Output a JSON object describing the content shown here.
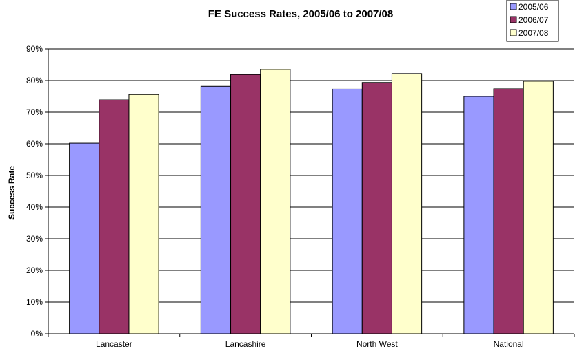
{
  "chart_data": {
    "type": "bar",
    "title": "FE Success Rates, 2005/06 to 2007/08",
    "xlabel": "",
    "ylabel": "Success Rate",
    "categories": [
      "Lancaster",
      "Lancashire",
      "North West",
      "National"
    ],
    "series": [
      {
        "name": "2005/06",
        "values": [
          0.602,
          0.782,
          0.773,
          0.75
        ],
        "color": "#9999ff"
      },
      {
        "name": "2006/07",
        "values": [
          0.739,
          0.819,
          0.794,
          0.774
        ],
        "color": "#993366"
      },
      {
        "name": "2007/08",
        "values": [
          0.756,
          0.835,
          0.822,
          0.798
        ],
        "color": "#ffffcc"
      }
    ],
    "ylim": [
      0,
      0.9
    ],
    "yticks": [
      "0%",
      "10%",
      "20%",
      "30%",
      "40%",
      "50%",
      "60%",
      "70%",
      "80%",
      "90%"
    ],
    "grid": true,
    "legend_position": "top-right"
  }
}
